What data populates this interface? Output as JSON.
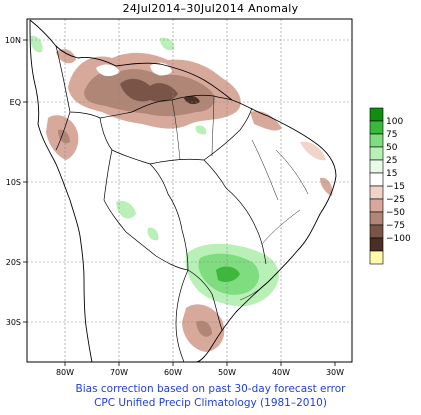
{
  "title": "24Jul2014–30Jul2014 Anomaly",
  "footer": {
    "line1": "Bias correction based on past 30-day forecast error",
    "line2": "CPC Unified Precip Climatology (1981–2010)"
  },
  "axes": {
    "x_ticks": [
      "80W",
      "70W",
      "60W",
      "50W",
      "40W",
      "30W"
    ],
    "y_ticks": [
      "10N",
      "EQ",
      "10S",
      "20S",
      "30S"
    ]
  },
  "legend": {
    "labels": [
      "100",
      "75",
      "50",
      "25",
      "15",
      "−15",
      "−25",
      "−50",
      "−75",
      "−100"
    ],
    "colors": [
      "#0f8f0f",
      "#3cb93c",
      "#7fdc7f",
      "#b8f0b8",
      "#e8fbe8",
      "#ffffff",
      "#f1d3c8",
      "#d7a99b",
      "#b08676",
      "#7a5547",
      "#4a2f24",
      "#fffaa8"
    ]
  },
  "colors": {
    "frame": "#000000",
    "grid": "#888888",
    "coast": "#000000",
    "footer_text": "#1f3fe0"
  }
}
